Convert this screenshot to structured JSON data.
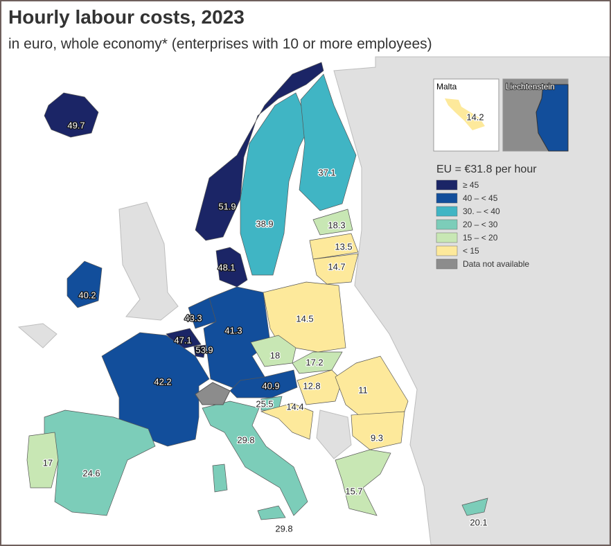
{
  "header": {
    "title": "Hourly labour costs, 2023",
    "subtitle": "in euro, whole economy* (enterprises with 10 or more employees)"
  },
  "map": {
    "values": [
      49.7,
      51.9,
      38.9,
      37.1,
      48.1,
      18.3,
      13.5,
      14.7,
      40.2,
      43.3,
      47.1,
      53.9,
      41.3,
      14.5,
      42.2,
      18,
      17.2,
      40.9,
      12.8,
      11,
      25.5,
      14.4,
      29.8,
      9.3,
      24.6,
      17,
      15.7,
      20.1
    ],
    "insets": [
      {
        "label": "Malta",
        "value": 14.2
      },
      {
        "label": "Liechtenstein"
      }
    ]
  },
  "legend": {
    "title": "EU = €31.8 per hour",
    "entries": [
      {
        "label": "≥ 45",
        "min": 45,
        "color": "#1b2566"
      },
      {
        "label": "40 – < 45",
        "min": 40,
        "max": 45,
        "color": "#124e9b"
      },
      {
        "label": "30. – < 40",
        "min": 30,
        "max": 40,
        "color": "#40b5c4"
      },
      {
        "label": "20 – < 30",
        "min": 20,
        "max": 30,
        "color": "#7ccdb9"
      },
      {
        "label": "15 – < 20",
        "min": 15,
        "max": 20,
        "color": "#c8e7b4"
      },
      {
        "label": "< 15",
        "max": 15,
        "color": "#fde99b"
      },
      {
        "label": "Data not available",
        "color": "#8c8c8c"
      }
    ]
  }
}
